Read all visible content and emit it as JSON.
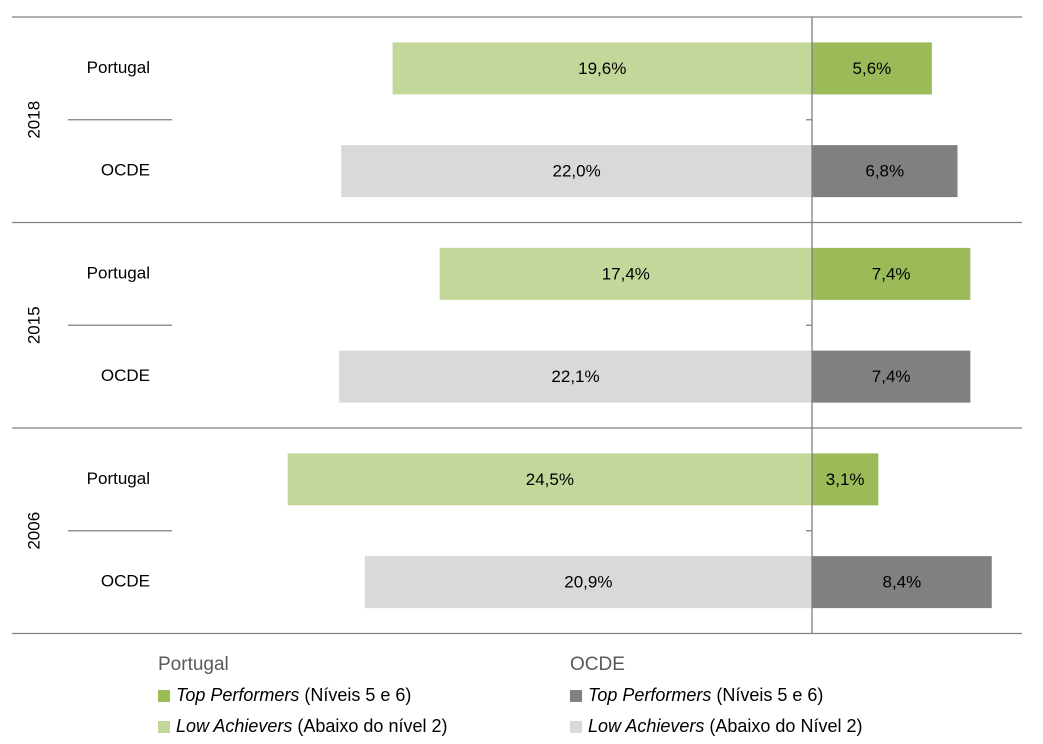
{
  "chart_data": {
    "type": "diverging_bar",
    "groups": [
      "2018",
      "2015",
      "2006"
    ],
    "categories": [
      "Portugal",
      "OCDE",
      "Portugal",
      "OCDE",
      "Portugal",
      "OCDE"
    ],
    "legend_titles": [
      "Portugal",
      "OCDE"
    ],
    "series": [
      {
        "name": "Top Performers",
        "name_suffix": "(Níveis 5 e 6)",
        "color": "#9bbb59",
        "side": "right",
        "values": [
          5.6,
          null,
          7.4,
          null,
          3.1,
          null
        ],
        "value_labels": [
          "5,6%",
          null,
          "7,4%",
          null,
          "3,1%",
          null
        ]
      },
      {
        "name": "Low Achievers",
        "name_suffix": "(Abaixo do nível 2)",
        "color": "#c4d79b",
        "side": "left",
        "values": [
          19.6,
          null,
          17.4,
          null,
          24.5,
          null
        ],
        "value_labels": [
          "19,6%",
          null,
          "17,4%",
          null,
          "24,5%",
          null
        ]
      },
      {
        "name": "Top Performers",
        "name_suffix": "(Níveis 5 e 6)",
        "color": "#808080",
        "side": "right",
        "values": [
          null,
          6.8,
          null,
          7.4,
          null,
          8.4
        ],
        "value_labels": [
          null,
          "6,8%",
          null,
          "7,4%",
          null,
          "8,4%"
        ]
      },
      {
        "name": "Low Achievers",
        "name_suffix": "(Abaixo do Nível 2)",
        "color": "#d9d9d9",
        "side": "left",
        "values": [
          null,
          22.0,
          null,
          22.1,
          null,
          20.9
        ],
        "value_labels": [
          null,
          "22,0%",
          null,
          "22,1%",
          null,
          "20,9%"
        ]
      }
    ]
  }
}
